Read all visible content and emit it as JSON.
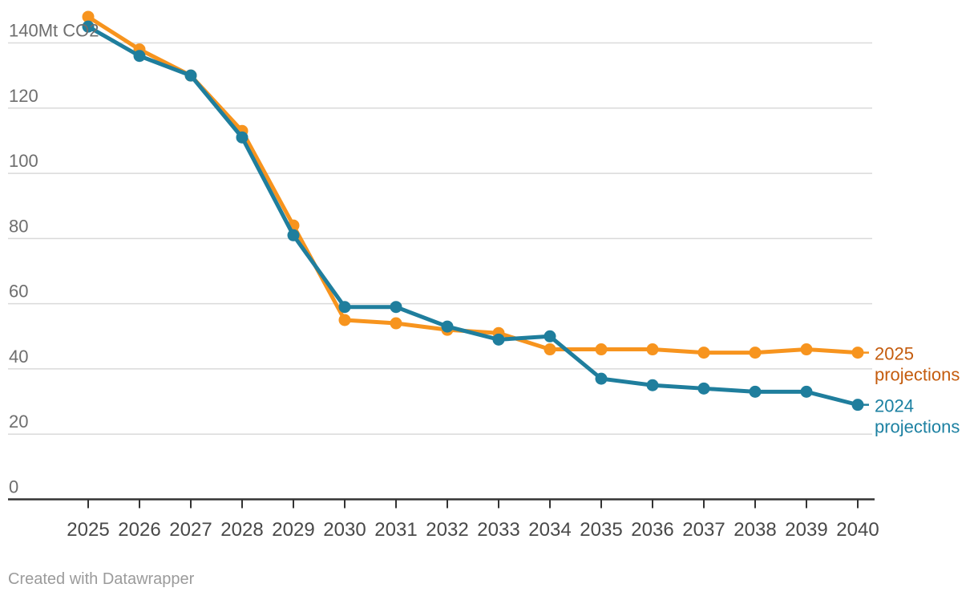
{
  "chart_data": {
    "type": "line",
    "title": "",
    "ylabel": "Mt CO2",
    "xlabel": "",
    "x": [
      2025,
      2026,
      2027,
      2028,
      2029,
      2030,
      2031,
      2032,
      2033,
      2034,
      2035,
      2036,
      2037,
      2038,
      2039,
      2040
    ],
    "series": [
      {
        "name": "2025 projections",
        "label_lines": [
          "2025",
          "projections"
        ],
        "color": "#F7941E",
        "label_color": "#C45C0E",
        "values": [
          148,
          138,
          130,
          113,
          84,
          55,
          54,
          52,
          51,
          46,
          46,
          46,
          45,
          45,
          46,
          45
        ]
      },
      {
        "name": "2024 projections",
        "label_lines": [
          "2024",
          "projections"
        ],
        "color": "#1F7E9D",
        "label_color": "#1D81A2",
        "values": [
          145,
          136,
          130,
          111,
          81,
          59,
          59,
          53,
          49,
          50,
          37,
          35,
          34,
          33,
          33,
          29
        ]
      }
    ],
    "yticks": [
      0,
      20,
      40,
      60,
      80,
      100,
      120,
      140
    ],
    "ytick_top_label": "140Mt CO2",
    "ylim": [
      0,
      150
    ],
    "grid": "on",
    "legend_position": "right-end-of-lines",
    "colors": {
      "gridline": "#DADADA",
      "axis": "#333333",
      "y_tick_labels": "#6E6E6E",
      "x_tick_labels": "#494949",
      "credit_text": "#9B9B9B",
      "background": "#FFFFFF"
    }
  },
  "footer": {
    "credit": "Created with Datawrapper"
  }
}
